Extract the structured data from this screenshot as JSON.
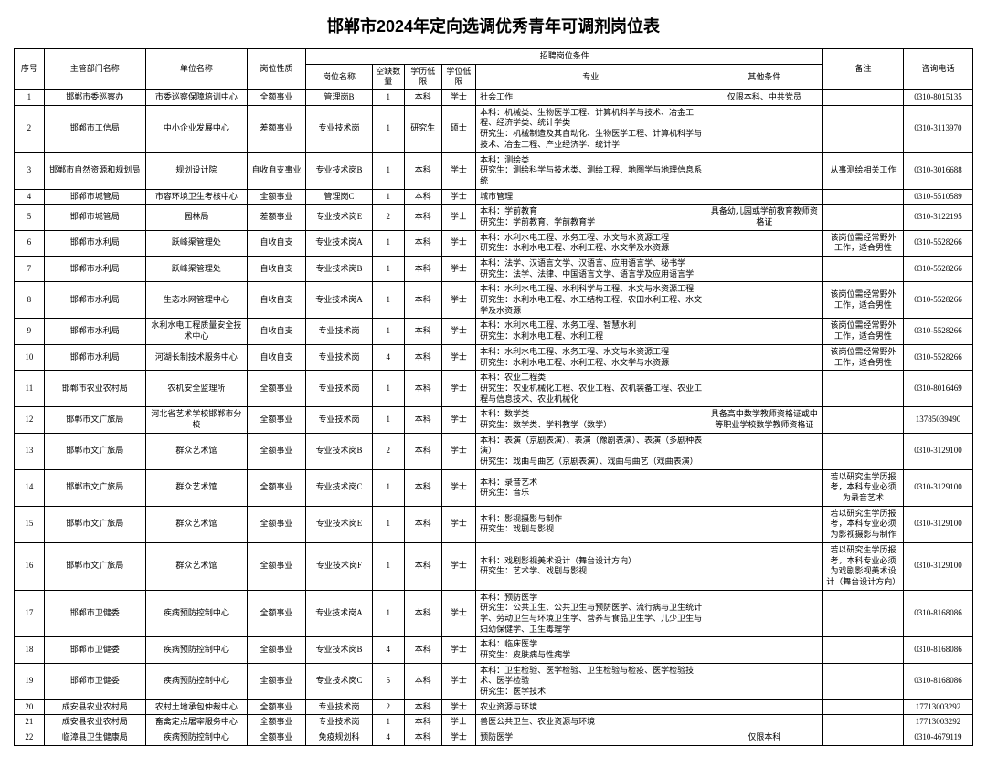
{
  "title": "邯郸市2024年定向选调优秀青年可调剂岗位表",
  "headers": {
    "xh": "序号",
    "dept": "主管部门名称",
    "unit": "单位名称",
    "nature": "岗位性质",
    "recruit_group": "招聘岗位条件",
    "post": "岗位名称",
    "vacancy": "空缺数量",
    "edu": "学历低限",
    "degree": "学位低限",
    "major": "专业",
    "other": "其他条件",
    "remark": "备注",
    "phone": "咨询电话"
  },
  "rows": [
    {
      "xh": "1",
      "dept": "邯郸市委巡察办",
      "unit": "市委巡察保障培训中心",
      "nature": "全额事业",
      "post": "管理岗B",
      "vacancy": "1",
      "edu": "本科",
      "degree": "学士",
      "major": "社会工作",
      "other": "仅限本科、中共党员",
      "remark": "",
      "phone": "0310-8015135"
    },
    {
      "xh": "2",
      "dept": "邯郸市工信局",
      "unit": "中小企业发展中心",
      "nature": "差额事业",
      "post": "专业技术岗",
      "vacancy": "1",
      "edu": "研究生",
      "degree": "硕士",
      "major": "本科：机械类、生物医学工程、计算机科学与技术、冶金工程、经济学类、统计学类\n研究生：机械制造及其自动化、生物医学工程、计算机科学与技术、冶金工程、产业经济学、统计学",
      "other": "",
      "remark": "",
      "phone": "0310-3113970"
    },
    {
      "xh": "3",
      "dept": "邯郸市自然资源和规划局",
      "unit": "规划设计院",
      "nature": "自收自支事业",
      "post": "专业技术岗B",
      "vacancy": "1",
      "edu": "本科",
      "degree": "学士",
      "major": "本科：测绘类\n研究生：测绘科学与技术类、测绘工程、地图学与地理信息系统",
      "other": "",
      "remark": "从事测绘相关工作",
      "phone": "0310-3016688"
    },
    {
      "xh": "4",
      "dept": "邯郸市城管局",
      "unit": "市容环境卫生考核中心",
      "nature": "全额事业",
      "post": "管理岗C",
      "vacancy": "1",
      "edu": "本科",
      "degree": "学士",
      "major": "城市管理",
      "other": "",
      "remark": "",
      "phone": "0310-5510589"
    },
    {
      "xh": "5",
      "dept": "邯郸市城管局",
      "unit": "园林局",
      "nature": "差额事业",
      "post": "专业技术岗E",
      "vacancy": "2",
      "edu": "本科",
      "degree": "学士",
      "major": "本科：学前教育\n研究生：学前教育、学前教育学",
      "other": "具备幼儿园或学前教育教师资格证",
      "remark": "",
      "phone": "0310-3122195"
    },
    {
      "xh": "6",
      "dept": "邯郸市水利局",
      "unit": "跃峰渠管理处",
      "nature": "自收自支",
      "post": "专业技术岗A",
      "vacancy": "1",
      "edu": "本科",
      "degree": "学士",
      "major": "本科：水利水电工程、水务工程、水文与水资源工程\n研究生：水利水电工程、水利工程、水文学及水资源",
      "other": "",
      "remark": "该岗位需经常野外工作，适合男性",
      "phone": "0310-5528266"
    },
    {
      "xh": "7",
      "dept": "邯郸市水利局",
      "unit": "跃峰渠管理处",
      "nature": "自收自支",
      "post": "专业技术岗B",
      "vacancy": "1",
      "edu": "本科",
      "degree": "学士",
      "major": "本科：法学、汉语言文学、汉语言、应用语言学、秘书学\n研究生：法学、法律、中国语言文学、语言学及应用语言学",
      "other": "",
      "remark": "",
      "phone": "0310-5528266"
    },
    {
      "xh": "8",
      "dept": "邯郸市水利局",
      "unit": "生态水网管理中心",
      "nature": "自收自支",
      "post": "专业技术岗A",
      "vacancy": "1",
      "edu": "本科",
      "degree": "学士",
      "major": "本科：水利水电工程、水利科学与工程、水文与水资源工程\n研究生：水利水电工程、水工结构工程、农田水利工程、水文学及水资源",
      "other": "",
      "remark": "该岗位需经常野外工作，适合男性",
      "phone": "0310-5528266"
    },
    {
      "xh": "9",
      "dept": "邯郸市水利局",
      "unit": "水利水电工程质量安全技术中心",
      "nature": "自收自支",
      "post": "专业技术岗",
      "vacancy": "1",
      "edu": "本科",
      "degree": "学士",
      "major": "本科：水利水电工程、水务工程、智慧水利\n研究生：水利水电工程、水利工程",
      "other": "",
      "remark": "该岗位需经常野外工作，适合男性",
      "phone": "0310-5528266"
    },
    {
      "xh": "10",
      "dept": "邯郸市水利局",
      "unit": "河湖长制技术服务中心",
      "nature": "自收自支",
      "post": "专业技术岗",
      "vacancy": "4",
      "edu": "本科",
      "degree": "学士",
      "major": "本科：水利水电工程、水务工程、水文与水资源工程\n研究生：水利水电工程、水利工程、水文学与水资源",
      "other": "",
      "remark": "该岗位需经常野外工作，适合男性",
      "phone": "0310-5528266"
    },
    {
      "xh": "11",
      "dept": "邯郸市农业农村局",
      "unit": "农机安全监理所",
      "nature": "全额事业",
      "post": "专业技术岗",
      "vacancy": "1",
      "edu": "本科",
      "degree": "学士",
      "major": "本科：农业工程类\n研究生：农业机械化工程、农业工程、农机装备工程、农业工程与信息技术、农业机械化",
      "other": "",
      "remark": "",
      "phone": "0310-8016469"
    },
    {
      "xh": "12",
      "dept": "邯郸市文广旅局",
      "unit": "河北省艺术学校邯郸市分校",
      "nature": "全额事业",
      "post": "专业技术岗",
      "vacancy": "1",
      "edu": "本科",
      "degree": "学士",
      "major": "本科：数学类\n研究生：数学类、学科教学（数学）",
      "other": "具备高中数学教师资格证或中等职业学校数学教师资格证",
      "remark": "",
      "phone": "13785039490"
    },
    {
      "xh": "13",
      "dept": "邯郸市文广旅局",
      "unit": "群众艺术馆",
      "nature": "全额事业",
      "post": "专业技术岗B",
      "vacancy": "2",
      "edu": "本科",
      "degree": "学士",
      "major": "本科：表演（京剧表演）、表演（豫剧表演）、表演（多剧种表演）\n研究生：戏曲与曲艺（京剧表演）、戏曲与曲艺（戏曲表演）",
      "other": "",
      "remark": "",
      "phone": "0310-3129100"
    },
    {
      "xh": "14",
      "dept": "邯郸市文广旅局",
      "unit": "群众艺术馆",
      "nature": "全额事业",
      "post": "专业技术岗C",
      "vacancy": "1",
      "edu": "本科",
      "degree": "学士",
      "major": "本科：录音艺术\n研究生：音乐",
      "other": "",
      "remark": "若以研究生学历报考，本科专业必须为录音艺术",
      "phone": "0310-3129100"
    },
    {
      "xh": "15",
      "dept": "邯郸市文广旅局",
      "unit": "群众艺术馆",
      "nature": "全额事业",
      "post": "专业技术岗E",
      "vacancy": "1",
      "edu": "本科",
      "degree": "学士",
      "major": "本科：影视摄影与制作\n研究生：戏剧与影视",
      "other": "",
      "remark": "若以研究生学历报考，本科专业必须为影视摄影与制作",
      "phone": "0310-3129100"
    },
    {
      "xh": "16",
      "dept": "邯郸市文广旅局",
      "unit": "群众艺术馆",
      "nature": "全额事业",
      "post": "专业技术岗F",
      "vacancy": "1",
      "edu": "本科",
      "degree": "学士",
      "major": "本科：戏剧影视美术设计（舞台设计方向）\n研究生：艺术学、戏剧与影视",
      "other": "",
      "remark": "若以研究生学历报考，本科专业必须为戏剧影视美术设计（舞台设计方向）",
      "phone": "0310-3129100"
    },
    {
      "xh": "17",
      "dept": "邯郸市卫健委",
      "unit": "疾病预防控制中心",
      "nature": "全额事业",
      "post": "专业技术岗A",
      "vacancy": "1",
      "edu": "本科",
      "degree": "学士",
      "major": "本科：预防医学\n研究生：公共卫生、公共卫生与预防医学、流行病与卫生统计学、劳动卫生与环境卫生学、营养与食品卫生学、儿少卫生与妇幼保健学、卫生毒理学",
      "other": "",
      "remark": "",
      "phone": "0310-8168086"
    },
    {
      "xh": "18",
      "dept": "邯郸市卫健委",
      "unit": "疾病预防控制中心",
      "nature": "全额事业",
      "post": "专业技术岗B",
      "vacancy": "4",
      "edu": "本科",
      "degree": "学士",
      "major": "本科：临床医学\n研究生：皮肤病与性病学",
      "other": "",
      "remark": "",
      "phone": "0310-8168086"
    },
    {
      "xh": "19",
      "dept": "邯郸市卫健委",
      "unit": "疾病预防控制中心",
      "nature": "全额事业",
      "post": "专业技术岗C",
      "vacancy": "5",
      "edu": "本科",
      "degree": "学士",
      "major": "本科：卫生检验、医学检验、卫生检验与检疫、医学检验技术、医学检验\n研究生：医学技术",
      "other": "",
      "remark": "",
      "phone": "0310-8168086"
    },
    {
      "xh": "20",
      "dept": "成安县农业农村局",
      "unit": "农村土地承包仲裁中心",
      "nature": "全额事业",
      "post": "专业技术岗",
      "vacancy": "2",
      "edu": "本科",
      "degree": "学士",
      "major": "农业资源与环境",
      "other": "",
      "remark": "",
      "phone": "17713003292"
    },
    {
      "xh": "21",
      "dept": "成安县农业农村局",
      "unit": "畜禽定点屠宰服务中心",
      "nature": "全额事业",
      "post": "专业技术岗",
      "vacancy": "1",
      "edu": "本科",
      "degree": "学士",
      "major": "兽医公共卫生、农业资源与环境",
      "other": "",
      "remark": "",
      "phone": "17713003292"
    },
    {
      "xh": "22",
      "dept": "临漳县卫生健康局",
      "unit": "疾病预防控制中心",
      "nature": "全额事业",
      "post": "免疫规划科",
      "vacancy": "4",
      "edu": "本科",
      "degree": "学士",
      "major": "预防医学",
      "other": "仅限本科",
      "remark": "",
      "phone": "0310-4679119"
    }
  ]
}
